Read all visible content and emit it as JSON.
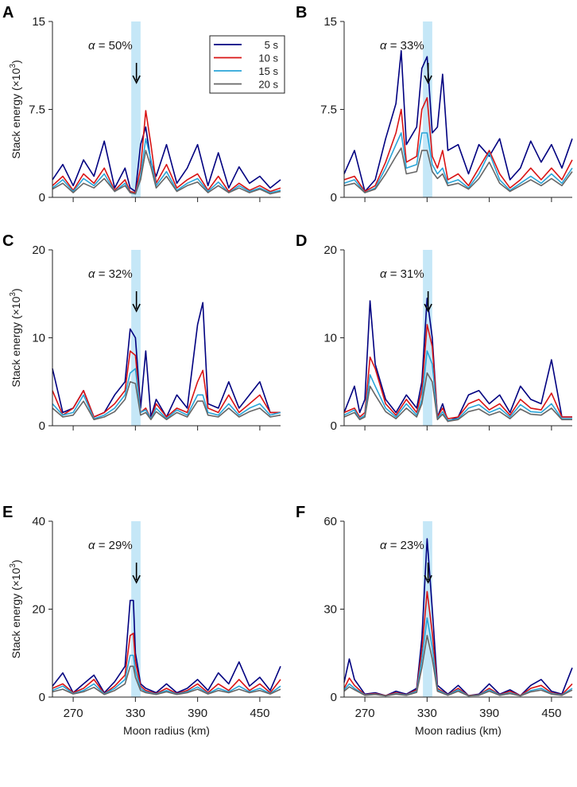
{
  "figure": {
    "xlabel": "Moon radius (km)",
    "ylabel": "Stack energy (×10³)",
    "ylabel_main": "Stack energy (×10",
    "ylabel_exp": "3",
    "ylabel_close": ")"
  },
  "legend": {
    "entries": [
      {
        "label": "5 s",
        "color": "#000080"
      },
      {
        "label": "10 s",
        "color": "#d91414"
      },
      {
        "label": "15 s",
        "color": "#2aa5d8"
      },
      {
        "label": "20 s",
        "color": "#666666"
      }
    ]
  },
  "highlight": {
    "band_km": [
      326,
      335
    ],
    "color": "#c5e7f7",
    "arrow_at_km": 331
  },
  "chart_data": [
    {
      "type": "line",
      "panel": "A",
      "alpha_label": "α = 50%",
      "alpha_symbol": "α",
      "alpha_value": " = 50%",
      "xlim": [
        250,
        470
      ],
      "ylim": [
        0,
        15
      ],
      "yticks": [
        "0",
        "7.5",
        "15"
      ],
      "ytick_values": [
        0,
        7.5,
        15
      ],
      "xticks": [
        "270",
        "330",
        "390",
        "450"
      ],
      "xtick_values": [
        270,
        330,
        390,
        450
      ],
      "x": [
        250,
        260,
        270,
        280,
        290,
        300,
        310,
        320,
        325,
        330,
        335,
        340,
        345,
        350,
        360,
        370,
        380,
        390,
        400,
        410,
        420,
        430,
        440,
        450,
        460,
        470
      ],
      "series": [
        {
          "name": "5 s",
          "values": [
            1.5,
            2.8,
            1.0,
            3.2,
            1.8,
            4.8,
            0.8,
            2.5,
            0.8,
            0.5,
            4.5,
            6.0,
            3.0,
            1.8,
            4.5,
            1.2,
            2.5,
            4.5,
            1.0,
            3.8,
            0.8,
            2.6,
            1.2,
            1.8,
            0.8,
            1.5
          ]
        },
        {
          "name": "10 s",
          "values": [
            1.0,
            1.8,
            0.6,
            2.0,
            1.2,
            2.5,
            0.6,
            1.5,
            0.5,
            0.4,
            2.5,
            7.4,
            4.5,
            1.2,
            2.8,
            0.8,
            1.5,
            2.0,
            0.6,
            1.8,
            0.5,
            1.2,
            0.6,
            1.0,
            0.5,
            0.8
          ]
        },
        {
          "name": "15 s",
          "values": [
            0.8,
            1.5,
            0.5,
            1.6,
            1.0,
            2.0,
            0.5,
            1.2,
            0.4,
            0.3,
            1.8,
            5.0,
            3.2,
            1.0,
            2.2,
            0.6,
            1.2,
            1.6,
            0.5,
            1.3,
            0.4,
            1.0,
            0.5,
            0.8,
            0.4,
            0.6
          ]
        },
        {
          "name": "20 s",
          "values": [
            0.7,
            1.2,
            0.4,
            1.2,
            0.8,
            1.6,
            0.5,
            1.0,
            0.4,
            0.3,
            1.5,
            4.0,
            2.6,
            0.8,
            1.8,
            0.5,
            1.0,
            1.3,
            0.4,
            1.0,
            0.4,
            0.8,
            0.4,
            0.7,
            0.3,
            0.5
          ]
        }
      ]
    },
    {
      "type": "line",
      "panel": "B",
      "alpha_label": "α = 33%",
      "alpha_symbol": "α",
      "alpha_value": " = 33%",
      "xlim": [
        250,
        470
      ],
      "ylim": [
        0,
        15
      ],
      "yticks": [
        "0",
        "7.5",
        "15"
      ],
      "ytick_values": [
        0,
        7.5,
        15
      ],
      "xticks": [
        "270",
        "330",
        "390",
        "450"
      ],
      "xtick_values": [
        270,
        330,
        390,
        450
      ],
      "x": [
        250,
        260,
        270,
        280,
        290,
        300,
        305,
        310,
        320,
        325,
        330,
        335,
        340,
        345,
        350,
        360,
        370,
        380,
        390,
        400,
        410,
        420,
        430,
        440,
        450,
        460,
        470
      ],
      "series": [
        {
          "name": "5 s",
          "values": [
            2.0,
            4.0,
            0.5,
            1.5,
            5.0,
            8.0,
            12.5,
            4.5,
            6.0,
            11.0,
            12.0,
            5.5,
            6.0,
            10.5,
            4.0,
            4.5,
            2.0,
            4.5,
            3.5,
            5.0,
            1.5,
            2.5,
            4.8,
            3.0,
            4.5,
            2.5,
            5.0
          ]
        },
        {
          "name": "10 s",
          "values": [
            1.5,
            1.8,
            0.5,
            1.0,
            3.0,
            5.5,
            7.5,
            3.0,
            3.5,
            7.5,
            8.5,
            3.5,
            2.5,
            4.0,
            1.5,
            2.0,
            1.0,
            2.5,
            4.0,
            2.0,
            0.8,
            1.5,
            2.5,
            1.5,
            2.5,
            1.5,
            3.2
          ]
        },
        {
          "name": "15 s",
          "values": [
            1.2,
            1.5,
            0.4,
            0.8,
            2.5,
            4.5,
            5.5,
            2.5,
            2.8,
            5.5,
            5.5,
            2.8,
            2.0,
            2.5,
            1.2,
            1.5,
            0.8,
            2.0,
            3.8,
            1.5,
            0.6,
            1.2,
            1.8,
            1.2,
            2.0,
            1.2,
            2.5
          ]
        },
        {
          "name": "20 s",
          "values": [
            1.0,
            1.2,
            0.4,
            0.7,
            2.0,
            3.5,
            4.2,
            2.0,
            2.2,
            4.0,
            4.0,
            2.2,
            1.6,
            2.0,
            1.0,
            1.2,
            0.7,
            1.6,
            3.0,
            1.2,
            0.5,
            1.0,
            1.5,
            1.0,
            1.6,
            1.0,
            2.2
          ]
        }
      ]
    },
    {
      "type": "line",
      "panel": "C",
      "alpha_label": "α = 32%",
      "alpha_symbol": "α",
      "alpha_value": " = 32%",
      "xlim": [
        250,
        470
      ],
      "ylim": [
        0,
        20
      ],
      "yticks": [
        "0",
        "10",
        "20"
      ],
      "ytick_values": [
        0,
        10,
        20
      ],
      "xticks": [
        "270",
        "330",
        "390",
        "450"
      ],
      "xtick_values": [
        270,
        330,
        390,
        450
      ],
      "x": [
        250,
        260,
        270,
        280,
        290,
        300,
        310,
        320,
        325,
        330,
        335,
        340,
        345,
        350,
        360,
        370,
        380,
        390,
        395,
        400,
        410,
        420,
        430,
        440,
        450,
        460,
        470
      ],
      "series": [
        {
          "name": "5 s",
          "values": [
            6.5,
            1.5,
            2.0,
            4.0,
            1.0,
            1.5,
            3.5,
            5.0,
            11.0,
            10.0,
            2.0,
            8.5,
            1.0,
            3.0,
            1.0,
            3.5,
            2.0,
            11.5,
            14.0,
            2.5,
            2.0,
            5.0,
            2.0,
            3.5,
            5.0,
            1.5,
            1.5
          ]
        },
        {
          "name": "10 s",
          "values": [
            4.0,
            1.2,
            2.0,
            4.0,
            1.0,
            1.5,
            2.5,
            4.0,
            8.5,
            8.0,
            1.5,
            2.0,
            0.8,
            2.5,
            1.0,
            2.0,
            1.5,
            5.0,
            6.3,
            2.0,
            1.5,
            3.5,
            1.5,
            2.5,
            3.5,
            1.5,
            1.5
          ]
        },
        {
          "name": "15 s",
          "values": [
            2.5,
            1.2,
            1.5,
            3.5,
            0.8,
            1.2,
            2.0,
            3.5,
            6.0,
            6.5,
            1.5,
            1.8,
            0.8,
            2.0,
            0.8,
            1.8,
            1.2,
            3.5,
            3.5,
            1.5,
            1.2,
            2.5,
            1.2,
            2.0,
            2.5,
            1.2,
            1.5
          ]
        },
        {
          "name": "20 s",
          "values": [
            2.0,
            1.0,
            1.2,
            2.8,
            0.7,
            1.0,
            1.6,
            3.0,
            5.0,
            4.8,
            1.2,
            1.5,
            0.7,
            1.6,
            0.7,
            1.5,
            1.0,
            2.8,
            2.8,
            1.2,
            1.0,
            2.0,
            1.0,
            1.6,
            2.0,
            1.0,
            1.2
          ]
        }
      ]
    },
    {
      "type": "line",
      "panel": "D",
      "alpha_label": "α = 31%",
      "alpha_symbol": "α",
      "alpha_value": " = 31%",
      "xlim": [
        250,
        470
      ],
      "ylim": [
        0,
        20
      ],
      "yticks": [
        "0",
        "10",
        "20"
      ],
      "ytick_values": [
        0,
        10,
        20
      ],
      "xticks": [
        "270",
        "330",
        "390",
        "450"
      ],
      "xtick_values": [
        270,
        330,
        390,
        450
      ],
      "x": [
        250,
        260,
        265,
        270,
        275,
        280,
        290,
        300,
        310,
        320,
        325,
        330,
        335,
        340,
        345,
        350,
        360,
        370,
        380,
        390,
        400,
        410,
        420,
        430,
        440,
        450,
        460,
        470
      ],
      "series": [
        {
          "name": "5 s",
          "values": [
            1.5,
            4.5,
            1.5,
            3.0,
            14.2,
            7.0,
            3.0,
            1.5,
            3.5,
            2.0,
            5.0,
            14.5,
            10.0,
            1.0,
            2.5,
            0.5,
            1.0,
            3.5,
            4.0,
            2.5,
            3.5,
            1.5,
            4.5,
            3.0,
            2.5,
            7.5,
            1.0,
            1.0
          ]
        },
        {
          "name": "10 s",
          "values": [
            1.5,
            2.0,
            1.0,
            1.5,
            7.8,
            6.5,
            2.5,
            1.2,
            3.0,
            1.5,
            4.0,
            11.5,
            9.0,
            1.0,
            2.0,
            0.8,
            1.0,
            2.5,
            3.0,
            1.8,
            2.5,
            1.2,
            3.0,
            2.0,
            1.8,
            3.7,
            1.0,
            1.0
          ]
        },
        {
          "name": "15 s",
          "values": [
            1.2,
            1.8,
            0.8,
            1.2,
            5.8,
            4.5,
            2.0,
            1.0,
            2.5,
            1.2,
            3.0,
            8.5,
            7.0,
            0.8,
            1.6,
            0.6,
            0.8,
            2.0,
            2.4,
            1.5,
            2.0,
            1.0,
            2.4,
            1.6,
            1.5,
            2.5,
            0.8,
            0.8
          ]
        },
        {
          "name": "20 s",
          "values": [
            1.0,
            1.5,
            0.7,
            1.0,
            4.5,
            3.5,
            1.6,
            0.8,
            2.0,
            1.0,
            2.5,
            6.0,
            5.0,
            0.7,
            1.3,
            0.5,
            0.7,
            1.6,
            1.9,
            1.2,
            1.6,
            0.8,
            1.9,
            1.3,
            1.2,
            2.0,
            0.7,
            0.7
          ]
        }
      ]
    },
    {
      "type": "line",
      "panel": "E",
      "alpha_label": "α = 29%",
      "alpha_symbol": "α",
      "alpha_value": " = 29%",
      "xlim": [
        250,
        470
      ],
      "ylim": [
        0,
        40
      ],
      "yticks": [
        "0",
        "20",
        "40"
      ],
      "ytick_values": [
        0,
        20,
        40
      ],
      "xticks": [
        "270",
        "330",
        "390",
        "450"
      ],
      "xtick_values": [
        270,
        330,
        390,
        450
      ],
      "x": [
        250,
        260,
        270,
        280,
        290,
        300,
        310,
        320,
        325,
        328,
        330,
        335,
        340,
        350,
        360,
        370,
        380,
        390,
        400,
        410,
        420,
        430,
        440,
        450,
        460,
        470
      ],
      "series": [
        {
          "name": "5 s",
          "values": [
            2.5,
            5.5,
            1.0,
            3.0,
            5.0,
            1.0,
            3.5,
            7.0,
            22.0,
            22.0,
            10.0,
            3.0,
            2.0,
            1.0,
            3.0,
            1.0,
            2.0,
            4.0,
            1.5,
            5.5,
            3.0,
            8.0,
            2.5,
            4.5,
            1.5,
            7.0
          ]
        },
        {
          "name": "10 s",
          "values": [
            2.0,
            3.0,
            1.0,
            2.0,
            4.0,
            0.8,
            2.5,
            5.0,
            14.0,
            14.5,
            8.0,
            2.5,
            1.5,
            0.8,
            2.0,
            0.8,
            1.5,
            3.0,
            1.0,
            3.0,
            1.5,
            4.0,
            1.5,
            3.0,
            1.0,
            4.0
          ]
        },
        {
          "name": "15 s",
          "values": [
            1.5,
            2.5,
            0.8,
            1.5,
            3.0,
            0.7,
            2.0,
            4.0,
            9.5,
            9.5,
            6.0,
            2.0,
            1.2,
            0.7,
            1.5,
            0.7,
            1.2,
            2.3,
            0.8,
            2.0,
            1.2,
            2.5,
            1.2,
            2.0,
            0.8,
            2.5
          ]
        },
        {
          "name": "20 s",
          "values": [
            1.2,
            1.8,
            0.7,
            1.2,
            2.2,
            0.6,
            1.5,
            3.0,
            7.0,
            7.0,
            4.5,
            1.5,
            1.0,
            0.6,
            1.2,
            0.6,
            1.0,
            1.8,
            0.7,
            1.5,
            1.0,
            1.8,
            1.0,
            1.5,
            0.7,
            1.8
          ]
        }
      ]
    },
    {
      "type": "line",
      "panel": "F",
      "alpha_label": "α = 23%",
      "alpha_symbol": "α",
      "alpha_value": " = 23%",
      "xlim": [
        250,
        470
      ],
      "ylim": [
        0,
        60
      ],
      "yticks": [
        "0",
        "30",
        "60"
      ],
      "ytick_values": [
        0,
        30,
        60
      ],
      "xticks": [
        "270",
        "330",
        "390",
        "450"
      ],
      "xtick_values": [
        270,
        330,
        390,
        450
      ],
      "x": [
        250,
        255,
        260,
        270,
        280,
        290,
        300,
        310,
        320,
        325,
        330,
        335,
        340,
        350,
        360,
        370,
        380,
        390,
        400,
        410,
        420,
        430,
        440,
        450,
        460,
        470
      ],
      "series": [
        {
          "name": "5 s",
          "values": [
            5.0,
            13.0,
            6.0,
            1.0,
            1.5,
            0.5,
            2.0,
            1.0,
            3.0,
            20.0,
            54.0,
            30.0,
            4.0,
            1.0,
            4.0,
            0.5,
            1.0,
            4.5,
            1.0,
            2.5,
            0.5,
            4.0,
            6.0,
            2.0,
            1.0,
            10.0
          ]
        },
        {
          "name": "10 s",
          "values": [
            3.0,
            6.5,
            4.0,
            0.8,
            1.2,
            0.5,
            1.5,
            0.8,
            2.5,
            16.0,
            36.0,
            22.0,
            3.0,
            0.8,
            3.0,
            0.5,
            0.8,
            3.0,
            0.8,
            2.0,
            0.5,
            3.0,
            4.0,
            1.5,
            0.8,
            4.5
          ]
        },
        {
          "name": "15 s",
          "values": [
            2.5,
            4.5,
            3.0,
            0.7,
            1.0,
            0.4,
            1.2,
            0.7,
            2.0,
            13.0,
            27.0,
            17.0,
            2.5,
            0.7,
            2.5,
            0.4,
            0.7,
            2.5,
            0.7,
            1.5,
            0.4,
            2.2,
            3.0,
            1.2,
            0.7,
            3.0
          ]
        },
        {
          "name": "20 s",
          "values": [
            2.0,
            3.5,
            2.5,
            0.6,
            0.9,
            0.4,
            1.0,
            0.6,
            1.6,
            10.0,
            21.0,
            13.0,
            2.0,
            0.6,
            2.0,
            0.4,
            0.6,
            2.0,
            0.6,
            1.2,
            0.4,
            1.8,
            2.4,
            1.0,
            0.6,
            2.4
          ]
        }
      ]
    }
  ]
}
